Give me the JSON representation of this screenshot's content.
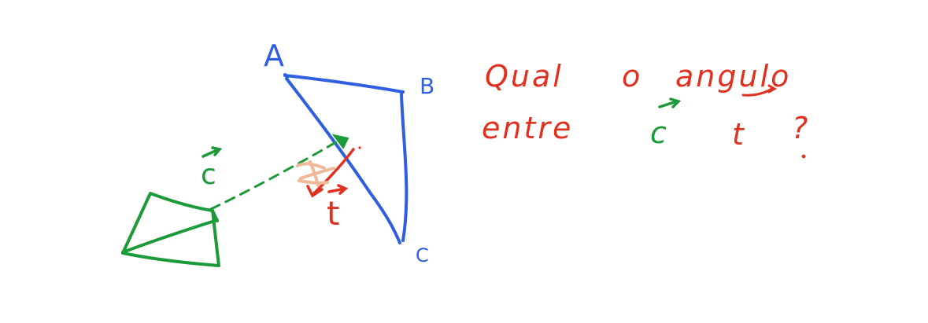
{
  "colors": {
    "blue": "#2f5fe0",
    "green": "#1c9a3a",
    "red": "#e0301e",
    "peach": "#f0b99a"
  },
  "labels": {
    "point_a": "A",
    "point_b": "B",
    "point_c": "C",
    "vector_c": "c",
    "vector_t": "t"
  },
  "question": {
    "line1_word1": "Qual",
    "line1_word2": "o",
    "line1_word3": "angulo",
    "line2_word1": "entre",
    "line2_vec1": "c",
    "line2_vec2": "t",
    "line2_mark": "?"
  }
}
